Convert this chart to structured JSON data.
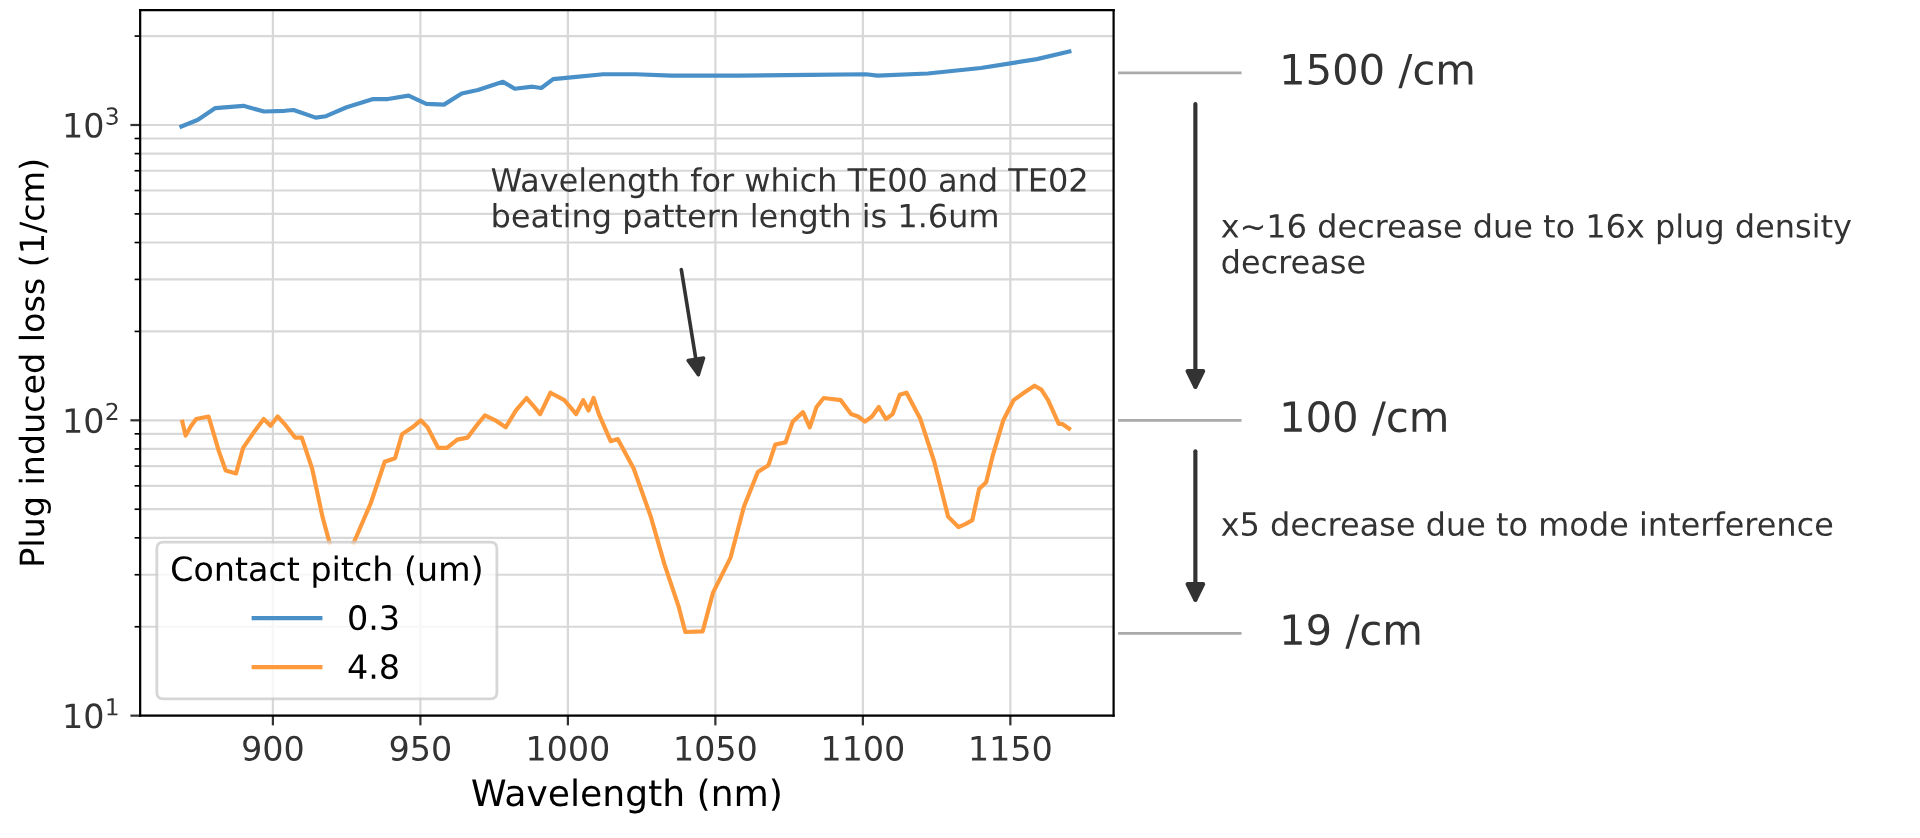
{
  "chart_data": {
    "type": "line",
    "xlabel": "Wavelength (nm)",
    "ylabel": "Plug induced loss (1/cm)",
    "legend_title": "Contact pitch (um)",
    "xlim": [
      855,
      1185
    ],
    "xticks": [
      900,
      950,
      1000,
      1050,
      1100,
      1150
    ],
    "ylim": [
      10,
      2450
    ],
    "yticks": [
      {
        "value": 10,
        "label": "10$^{1}$"
      },
      {
        "value": 100,
        "label": "10$^{2}$"
      },
      {
        "value": 1000,
        "label": "10$^{3}$"
      }
    ],
    "log": "y",
    "grid": true,
    "legend": "bottom left",
    "marker": "none",
    "line_style": "solid",
    "series": [
      {
        "name": "0.3",
        "color": "#4a90c8",
        "x": [
          869,
          874.6,
          880.5,
          890,
          897,
          904,
          907,
          914.5,
          918,
          925,
          934,
          939,
          946,
          952,
          958,
          964,
          969.5,
          978,
          982,
          988,
          991,
          995,
          1002,
          1012,
          1023,
          1035,
          1058,
          1082,
          1101,
          1105,
          1122,
          1140,
          1150,
          1159,
          1170
        ],
        "values": [
          988,
          1042,
          1141,
          1161,
          1111,
          1117,
          1124,
          1059,
          1071,
          1148,
          1224,
          1224,
          1257,
          1179,
          1172,
          1279,
          1313,
          1400,
          1327,
          1348,
          1334,
          1430,
          1453,
          1485,
          1485,
          1469,
          1469,
          1478,
          1485,
          1469,
          1494,
          1559,
          1617,
          1671,
          1773
        ]
      },
      {
        "name": "4.8",
        "color": "#ff9a3c",
        "x": [
          869.3,
          870.4,
          872.3,
          874,
          878.2,
          881.7,
          884,
          887.5,
          889.9,
          893.4,
          896.9,
          899.2,
          901.6,
          903.9,
          907.5,
          909.8,
          913.3,
          916.8,
          919.2,
          925,
          927.4,
          933.2,
          937.9,
          941.4,
          943.8,
          947.3,
          950.1,
          952.4,
          956,
          959,
          962.5,
          966,
          969.5,
          971.9,
          975.4,
          978.9,
          982.4,
          986,
          988.3,
          990.6,
          994.1,
          998.8,
          1002.8,
          1005.2,
          1007,
          1008.7,
          1010.5,
          1014.5,
          1016.9,
          1022.3,
          1028.1,
          1032.8,
          1037.5,
          1039.8,
          1045.7,
          1049.2,
          1055.1,
          1059.7,
          1064.4,
          1068,
          1070.3,
          1073.8,
          1076.2,
          1079.7,
          1082,
          1084.3,
          1086.7,
          1092.5,
          1096,
          1098.4,
          1100.7,
          1103.1,
          1105.4,
          1107.8,
          1110.1,
          1112.5,
          1114.8,
          1119.5,
          1124.2,
          1128.9,
          1132.4,
          1134.7,
          1137.1,
          1139.4,
          1141.8,
          1144.1,
          1147.6,
          1151.1,
          1154.6,
          1158.2,
          1160.5,
          1162.8,
          1166.4,
          1167.5,
          1169.9
        ],
        "values": [
          98.8,
          88.8,
          95.8,
          101,
          103,
          78.5,
          67.6,
          66.1,
          80.7,
          90.7,
          101,
          95.8,
          103,
          97.3,
          87.4,
          87.4,
          68.7,
          47.2,
          38.5,
          null,
          38.5,
          52.5,
          72.4,
          74.4,
          89.8,
          94.7,
          100,
          94.7,
          80.7,
          80.7,
          86,
          87.4,
          97.3,
          104,
          100,
          94.7,
          108,
          119,
          112,
          105,
          124,
          117,
          105,
          117,
          108,
          119,
          105,
          85,
          86.4,
          68.7,
          47.2,
          32.4,
          23.5,
          19.2,
          19.3,
          26.1,
          34.2,
          51.1,
          66.8,
          70.5,
          82.8,
          84.2,
          98.9,
          106.6,
          94.7,
          111,
          119,
          117,
          105,
          103,
          99,
          103,
          111,
          101,
          105,
          122,
          124,
          101,
          72.4,
          47.2,
          43.5,
          44.5,
          45.9,
          58.5,
          61.7,
          76.4,
          100,
          117,
          124,
          131,
          127,
          117,
          97.3,
          97.3,
          93.7
        ]
      }
    ],
    "ref_lines": [
      {
        "axis": "y",
        "value": 1500,
        "label": "1500 /cm"
      },
      {
        "axis": "y",
        "value": 100,
        "label": "100 /cm"
      },
      {
        "axis": "y",
        "value": 19,
        "label": "19 /cm"
      }
    ],
    "annotations": [
      "Wavelength for which TE00 and TE02\nbeating pattern length is 1.6um",
      "x~16 decrease due to 16x plug density\ndecrease",
      "x5 decrease due to mode interference"
    ]
  }
}
